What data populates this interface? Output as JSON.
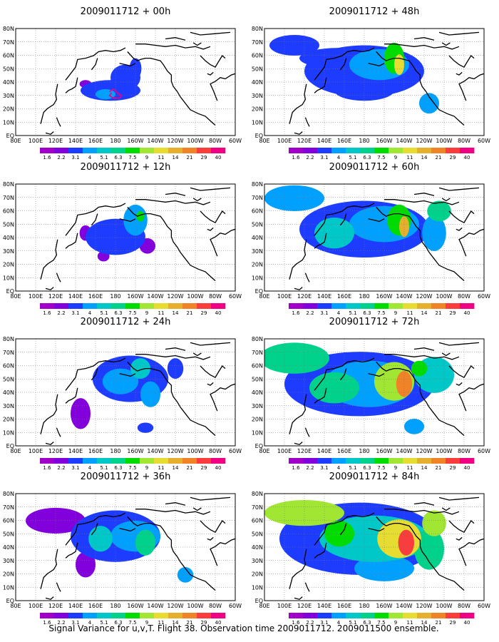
{
  "caption": "Signal Variance for u,v,T. Flight 38. Observation time 2009011712. 2009011500 ensemble.",
  "chart_data": {
    "type": "heatmap",
    "x_tick_labels": [
      "80E",
      "100E",
      "120E",
      "140E",
      "160E",
      "180",
      "160W",
      "140W",
      "120W",
      "100W",
      "80W",
      "60W"
    ],
    "y_tick_labels": [
      "80N",
      "70N",
      "60N",
      "50N",
      "40N",
      "30N",
      "20N",
      "10N",
      "EQ"
    ],
    "colorbar_levels": [
      "1.6",
      "2.2",
      "3.1",
      "4",
      "5.1",
      "6.3",
      "7.5",
      "9",
      "11",
      "14",
      "21",
      "29",
      "40"
    ],
    "colorbar_colors": [
      "#a000c8",
      "#8200dc",
      "#1e3cff",
      "#00a0ff",
      "#00c8c8",
      "#00d28c",
      "#00dc00",
      "#a0e632",
      "#e6dc32",
      "#e6af2d",
      "#f08228",
      "#fa3c3c",
      "#f00082"
    ],
    "panels": [
      {
        "title": "2009011712 + 00h",
        "lead_hours": 0,
        "blobs": [
          [
            175,
            35,
            30,
            8,
            2
          ],
          [
            190,
            45,
            15,
            10,
            2
          ],
          [
            200,
            52,
            6,
            8,
            2
          ],
          [
            150,
            40,
            6,
            3,
            1
          ],
          [
            170,
            32,
            10,
            4,
            3
          ]
        ],
        "observation_track": [
          [
            174,
            34
          ],
          [
            178,
            36
          ],
          [
            182,
            33
          ],
          [
            186,
            31
          ],
          [
            184,
            29
          ],
          [
            178,
            29
          ],
          [
            174,
            31
          ],
          [
            176,
            33
          ]
        ]
      },
      {
        "title": "2009011712 + 12h",
        "lead_hours": 12,
        "blobs": [
          [
            180,
            42,
            30,
            14,
            2
          ],
          [
            200,
            55,
            12,
            12,
            3
          ],
          [
            205,
            58,
            4,
            4,
            6
          ],
          [
            150,
            45,
            6,
            6,
            1
          ],
          [
            212,
            35,
            8,
            6,
            1
          ],
          [
            168,
            27,
            6,
            4,
            1
          ]
        ]
      },
      {
        "title": "2009011712 + 24h",
        "lead_hours": 24,
        "blobs": [
          [
            195,
            52,
            38,
            18,
            2
          ],
          [
            185,
            50,
            18,
            10,
            3
          ],
          [
            205,
            60,
            10,
            8,
            4
          ],
          [
            215,
            40,
            10,
            10,
            3
          ],
          [
            145,
            25,
            10,
            12,
            1
          ],
          [
            210,
            14,
            8,
            4,
            2
          ],
          [
            240,
            60,
            8,
            8,
            2
          ]
        ]
      },
      {
        "title": "2009011712 + 36h",
        "lead_hours": 36,
        "blobs": [
          [
            180,
            50,
            45,
            20,
            2
          ],
          [
            200,
            50,
            25,
            12,
            3
          ],
          [
            210,
            45,
            10,
            10,
            5
          ],
          [
            165,
            48,
            12,
            10,
            4
          ],
          [
            120,
            62,
            30,
            10,
            1
          ],
          [
            150,
            28,
            10,
            10,
            1
          ],
          [
            250,
            20,
            8,
            6,
            3
          ]
        ]
      },
      {
        "title": "2009011712 + 48h",
        "lead_hours": 48,
        "blobs": [
          [
            180,
            50,
            60,
            20,
            2
          ],
          [
            195,
            55,
            30,
            12,
            3
          ],
          [
            210,
            60,
            10,
            12,
            6
          ],
          [
            215,
            55,
            5,
            8,
            8
          ],
          [
            155,
            60,
            40,
            8,
            2
          ],
          [
            110,
            70,
            25,
            8,
            2
          ],
          [
            245,
            25,
            10,
            8,
            3
          ],
          [
            180,
            35,
            30,
            8,
            2
          ]
        ]
      },
      {
        "title": "2009011712 + 60h",
        "lead_hours": 60,
        "blobs": [
          [
            180,
            48,
            65,
            22,
            2
          ],
          [
            200,
            52,
            35,
            14,
            3
          ],
          [
            215,
            55,
            12,
            12,
            6
          ],
          [
            220,
            50,
            5,
            8,
            9
          ],
          [
            150,
            45,
            20,
            12,
            4
          ],
          [
            110,
            72,
            30,
            10,
            3
          ],
          [
            250,
            45,
            12,
            14,
            3
          ],
          [
            255,
            62,
            12,
            8,
            5
          ]
        ]
      },
      {
        "title": "2009011712 + 72h",
        "lead_hours": 72,
        "blobs": [
          [
            175,
            48,
            75,
            25,
            2
          ],
          [
            185,
            48,
            45,
            18,
            3
          ],
          [
            210,
            50,
            20,
            15,
            7
          ],
          [
            220,
            48,
            8,
            10,
            10
          ],
          [
            150,
            45,
            25,
            12,
            5
          ],
          [
            110,
            68,
            35,
            12,
            5
          ],
          [
            250,
            55,
            20,
            14,
            4
          ],
          [
            235,
            60,
            8,
            6,
            6
          ],
          [
            230,
            15,
            10,
            6,
            3
          ]
        ]
      },
      {
        "title": "2009011712 + 84h",
        "lead_hours": 84,
        "blobs": [
          [
            175,
            48,
            80,
            28,
            2
          ],
          [
            190,
            48,
            55,
            18,
            4
          ],
          [
            215,
            48,
            22,
            15,
            8
          ],
          [
            222,
            45,
            8,
            10,
            11
          ],
          [
            120,
            68,
            40,
            10,
            7
          ],
          [
            155,
            52,
            15,
            10,
            6
          ],
          [
            245,
            40,
            15,
            16,
            5
          ],
          [
            250,
            60,
            12,
            10,
            7
          ],
          [
            200,
            25,
            30,
            10,
            3
          ]
        ]
      }
    ]
  }
}
